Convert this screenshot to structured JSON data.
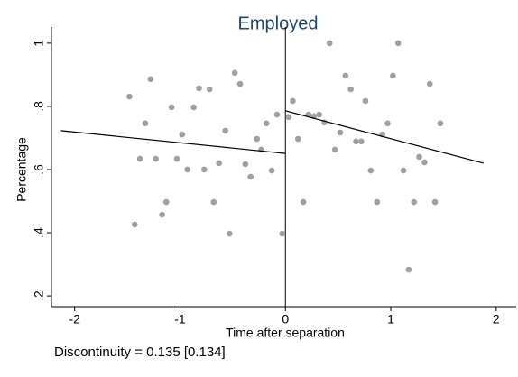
{
  "chart_data": {
    "type": "scatter",
    "title": "Employed",
    "x_label": "Time after separation",
    "y_label": "Percentage",
    "annotation": "Discontinuity = 0.135 [0.134]",
    "xlim": [
      -2.22,
      2.19
    ],
    "ylim": [
      0.166,
      1.051
    ],
    "xticks": [
      -2,
      -1,
      0,
      1,
      2
    ],
    "yticks": [
      1,
      {
        "value": 0.8,
        "label": ".8"
      },
      {
        "value": 0.6,
        "label": ".6"
      },
      {
        "value": 0.4,
        "label": ".4"
      },
      {
        "value": 0.2,
        "label": ".2"
      }
    ],
    "cutoff": 0,
    "series": [
      {
        "color": "#a0a0a0",
        "x": [
          -1.48,
          -1.43,
          -1.33,
          -1.38,
          -1.28,
          -1.23,
          -1.17,
          -1.13,
          -1.08,
          -1.03,
          -0.98,
          -0.93,
          -0.87,
          -0.82,
          -0.77,
          -0.72,
          -0.68,
          -0.63,
          -0.57,
          -0.53,
          -0.48,
          -0.43,
          -0.38,
          -0.33,
          -0.27,
          -0.23,
          -0.18,
          -0.13,
          -0.08,
          -0.03,
          0.03,
          0.07,
          0.12,
          0.17,
          0.22,
          0.27,
          0.32,
          0.37,
          0.42,
          0.47,
          0.52,
          0.57,
          0.62,
          0.67,
          0.72,
          0.76,
          0.81,
          0.87,
          0.92,
          0.97,
          1.02,
          1.07,
          1.12,
          1.17,
          1.22,
          1.27,
          1.32,
          1.37,
          1.42,
          1.47
        ],
        "values": [
          0.831,
          0.426,
          0.746,
          0.634,
          0.886,
          0.634,
          0.457,
          0.497,
          0.797,
          0.634,
          0.711,
          0.6,
          0.797,
          0.857,
          0.6,
          0.854,
          0.497,
          0.62,
          0.723,
          0.397,
          0.906,
          0.871,
          0.617,
          0.577,
          0.697,
          0.663,
          0.746,
          0.597,
          0.774,
          0.397,
          0.766,
          0.817,
          0.697,
          0.497,
          0.774,
          0.769,
          0.774,
          0.749,
          1.0,
          0.663,
          0.717,
          0.897,
          0.854,
          0.689,
          0.689,
          0.817,
          0.597,
          0.497,
          0.711,
          0.746,
          0.897,
          1.0,
          0.597,
          0.283,
          0.497,
          0.64,
          0.623,
          0.871,
          0.497,
          0.746
        ]
      }
    ],
    "lines": [
      {
        "color": "#000000",
        "x": [
          -2.13,
          0
        ],
        "values": [
          0.723,
          0.651
        ]
      },
      {
        "color": "#000000",
        "x": [
          0,
          1.88
        ],
        "values": [
          0.786,
          0.62
        ]
      }
    ]
  }
}
